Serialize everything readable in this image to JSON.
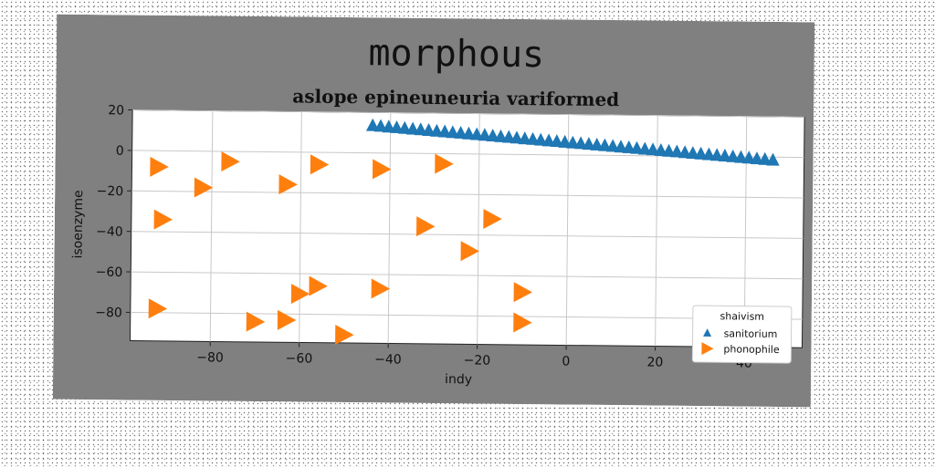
{
  "figure": {
    "background": "#808080",
    "plot_background": "#ffffff"
  },
  "chart_data": {
    "type": "scatter",
    "title": "morphous",
    "subtitle": "aslope epineuneuria variformed",
    "xlabel": "indy",
    "ylabel": "isoenzyme",
    "xlim": [
      -98,
      53
    ],
    "ylim": [
      -94,
      20
    ],
    "xticks": [
      -80,
      -60,
      -40,
      -20,
      0,
      20,
      40
    ],
    "yticks": [
      20,
      0,
      -20,
      -40,
      -60,
      -80
    ],
    "grid": true,
    "legend": {
      "title": "shaivism",
      "placement": "lower-right"
    },
    "series": [
      {
        "name": "sanitorium",
        "marker": "triangle-up",
        "color": "#1f77b4",
        "x": [
          -44,
          -42.2,
          -40.4,
          -38.6,
          -36.8,
          -35,
          -33.2,
          -31.4,
          -29.6,
          -27.8,
          -26,
          -24.2,
          -22.4,
          -20.6,
          -18.8,
          -17,
          -15.2,
          -13.4,
          -11.6,
          -9.8,
          -8,
          -6.2,
          -4.4,
          -2.6,
          -0.8,
          1,
          2.8,
          4.6,
          6.4,
          8.2,
          10,
          11.8,
          13.6,
          15.4,
          17.2,
          19,
          20.8,
          22.6,
          24.4,
          26.2,
          28,
          29.8,
          31.6,
          33.4,
          35.2,
          37,
          38.8,
          40.6,
          42.4,
          44.2,
          46
        ],
        "y": [
          13.5,
          13.2,
          12.9,
          12.6,
          12.3,
          12,
          11.7,
          11.4,
          11.1,
          10.8,
          10.5,
          10.2,
          9.9,
          9.6,
          9.3,
          9,
          8.7,
          8.4,
          8.1,
          7.8,
          7.5,
          7.2,
          6.9,
          6.6,
          6.3,
          6,
          5.7,
          5.4,
          5.1,
          4.8,
          4.5,
          4.2,
          3.9,
          3.6,
          3.3,
          3,
          2.7,
          2.4,
          2.1,
          1.8,
          1.5,
          1.2,
          0.9,
          0.6,
          0.3,
          0,
          -0.3,
          -0.6,
          -0.9,
          -1.2,
          -1.5
        ]
      },
      {
        "name": "phonophile",
        "marker": "triangle-right",
        "color": "#ff7f0e",
        "x": [
          -92,
          -76,
          -82,
          -56,
          -63,
          -42,
          -28,
          -91,
          -32,
          -17,
          -22,
          -60,
          -56,
          -42,
          -10,
          -92,
          -70,
          -63,
          -10,
          -50
        ],
        "y": [
          -8,
          -5,
          -18,
          -6,
          -16,
          -8,
          -5,
          -34,
          -36,
          -32,
          -48,
          -70,
          -66,
          -67,
          -68,
          -78,
          -84,
          -83,
          -83,
          -90
        ]
      }
    ]
  }
}
